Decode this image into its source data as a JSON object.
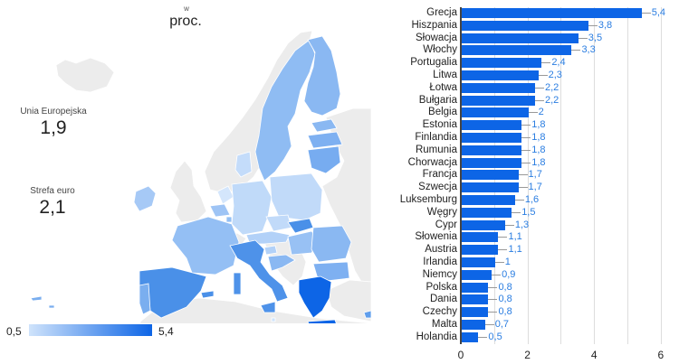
{
  "map": {
    "title_small": "w",
    "title": "proc.",
    "legend": {
      "min": "0,5",
      "max": "5,4",
      "color_min": "#cfe3fb",
      "color_max": "#0d65e6"
    },
    "colors": {
      "no_data": "#ececec",
      "border": "#ffffff",
      "water": "#ffffff"
    }
  },
  "scorecards": [
    {
      "label": "Unia Europejska",
      "value": "1,9"
    },
    {
      "label": "Strefa euro",
      "value": "2,1"
    }
  ],
  "chart_data": [
    {
      "type": "bar",
      "orientation": "horizontal",
      "title": "",
      "xlabel": "",
      "ylabel": "",
      "xlim": [
        0,
        6
      ],
      "x_ticks": [
        "0",
        "2",
        "4",
        "6"
      ],
      "grid": true,
      "bar_color": "#0d65e6",
      "label_color": "#2a7de1",
      "categories": [
        "Grecja",
        "Hiszpania",
        "Słowacja",
        "Włochy",
        "Portugalia",
        "Litwa",
        "Łotwa",
        "Bułgaria",
        "Belgia",
        "Estonia",
        "Finlandia",
        "Rumunia",
        "Chorwacja",
        "Francja",
        "Szwecja",
        "Luksemburg",
        "Węgry",
        "Cypr",
        "Słowenia",
        "Austria",
        "Irlandia",
        "Niemcy",
        "Polska",
        "Dania",
        "Czechy",
        "Malta",
        "Holandia"
      ],
      "values": [
        5.4,
        3.8,
        3.5,
        3.3,
        2.4,
        2.3,
        2.2,
        2.2,
        2.0,
        1.8,
        1.8,
        1.8,
        1.8,
        1.7,
        1.7,
        1.6,
        1.5,
        1.3,
        1.1,
        1.1,
        1.0,
        0.9,
        0.8,
        0.8,
        0.8,
        0.7,
        0.5
      ],
      "value_labels": [
        "5,4",
        "3,8",
        "3,5",
        "3,3",
        "2,4",
        "2,3",
        "2,2",
        "2,2",
        "2",
        "1,8",
        "1,8",
        "1,8",
        "1,8",
        "1,7",
        "1,7",
        "1,6",
        "1,5",
        "1,3",
        "1,1",
        "1,1",
        "1",
        "0,9",
        "0,8",
        "0,8",
        "0,8",
        "0,7",
        "0,5"
      ]
    },
    {
      "type": "heatmap",
      "subtype": "geo-choropleth",
      "title": "w proc.",
      "region": "Europe (EU member states)",
      "scale": {
        "min": 0.5,
        "max": 5.4
      },
      "note": "Same per-country values as bar chart"
    }
  ]
}
